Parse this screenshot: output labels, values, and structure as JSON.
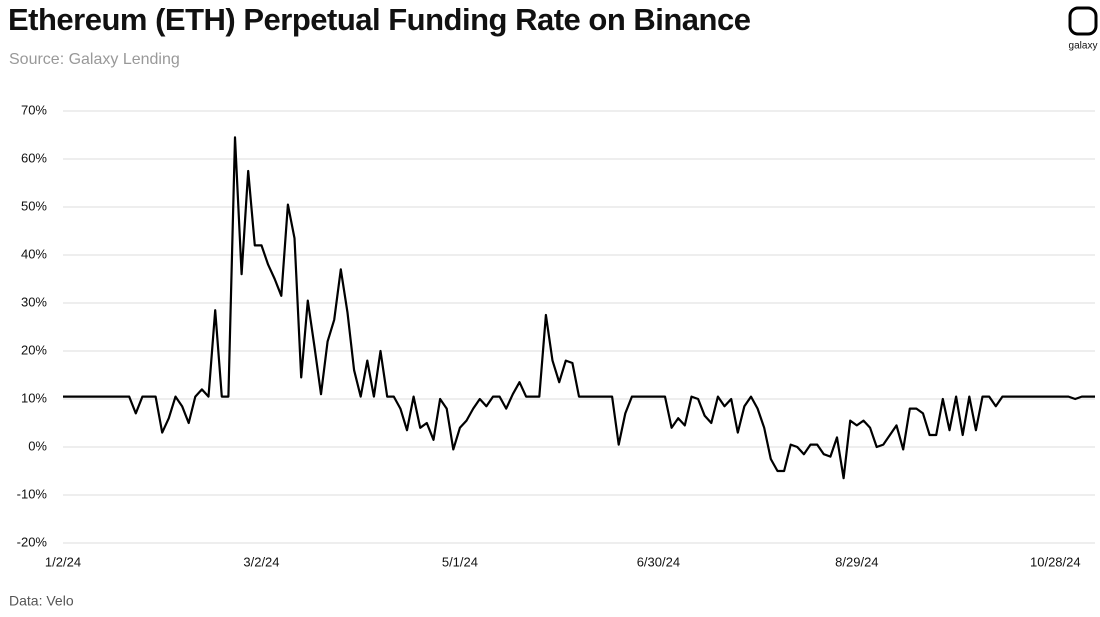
{
  "chart_data": {
    "type": "line",
    "title": "Ethereum (ETH) Perpetual Funding Rate on Binance",
    "subtitle": "Source: Galaxy Lending",
    "note": "Data: Velo",
    "logo_text": "galaxy",
    "color": "#000000",
    "grid": true,
    "x": [
      "1/2/24",
      "1/22/24",
      "1/24/24",
      "1/26/24",
      "1/30/24",
      "2/1/24",
      "2/3/24",
      "2/5/24",
      "2/7/24",
      "2/9/24",
      "2/11/24",
      "2/13/24",
      "2/15/24",
      "2/17/24",
      "2/19/24",
      "2/21/24",
      "2/23/24",
      "2/25/24",
      "2/27/24",
      "2/29/24",
      "3/2/24",
      "3/4/24",
      "3/6/24",
      "3/8/24",
      "3/10/24",
      "3/12/24",
      "3/14/24",
      "3/16/24",
      "3/18/24",
      "3/20/24",
      "3/22/24",
      "3/24/24",
      "3/26/24",
      "3/28/24",
      "3/30/24",
      "4/1/24",
      "4/3/24",
      "4/5/24",
      "4/7/24",
      "4/9/24",
      "4/11/24",
      "4/13/24",
      "4/15/24",
      "4/17/24",
      "4/19/24",
      "4/21/24",
      "4/23/24",
      "4/25/24",
      "4/27/24",
      "4/29/24",
      "5/1/24",
      "5/3/24",
      "5/5/24",
      "5/7/24",
      "5/9/24",
      "5/11/24",
      "5/13/24",
      "5/15/24",
      "5/17/24",
      "5/19/24",
      "5/21/24",
      "5/25/24",
      "5/27/24",
      "5/29/24",
      "5/31/24",
      "6/2/24",
      "6/4/24",
      "6/6/24",
      "6/16/24",
      "6/18/24",
      "6/20/24",
      "6/22/24",
      "7/2/24",
      "7/4/24",
      "7/6/24",
      "7/8/24",
      "7/10/24",
      "7/12/24",
      "7/14/24",
      "7/16/24",
      "7/18/24",
      "7/20/24",
      "7/22/24",
      "7/24/24",
      "7/26/24",
      "7/28/24",
      "7/30/24",
      "8/1/24",
      "8/3/24",
      "8/5/24",
      "8/7/24",
      "8/9/24",
      "8/11/24",
      "8/13/24",
      "8/15/24",
      "8/17/24",
      "8/19/24",
      "8/21/24",
      "8/23/24",
      "8/25/24",
      "8/27/24",
      "8/29/24",
      "8/31/24",
      "9/2/24",
      "9/4/24",
      "9/6/24",
      "9/8/24",
      "9/10/24",
      "9/12/24",
      "9/14/24",
      "9/16/24",
      "9/18/24",
      "9/20/24",
      "9/22/24",
      "9/24/24",
      "9/26/24",
      "9/28/24",
      "9/30/24",
      "10/2/24",
      "10/4/24",
      "10/6/24",
      "10/8/24",
      "10/10/24",
      "10/12/24",
      "11/1/24",
      "11/3/24",
      "11/5/24",
      "11/9/24"
    ],
    "values": [
      10.5,
      10.5,
      7,
      10.5,
      10.5,
      3,
      6,
      10.5,
      8.5,
      5,
      10.5,
      12,
      10.5,
      28.5,
      10.5,
      10.5,
      64.5,
      36,
      57.5,
      42,
      42,
      38,
      35,
      31.5,
      50.5,
      43.5,
      14.5,
      30.5,
      21,
      11,
      22,
      26.5,
      37,
      28,
      16,
      10.5,
      18,
      10.5,
      20,
      10.5,
      10.5,
      8,
      3.5,
      10.5,
      4,
      5,
      1.5,
      10,
      8,
      -0.5,
      4,
      5.5,
      8,
      10,
      8.5,
      10.5,
      10.5,
      8,
      11,
      13.5,
      10.5,
      10.5,
      27.5,
      18,
      13.5,
      18,
      17.5,
      10.5,
      10.5,
      0.5,
      7,
      10.5,
      10.5,
      4,
      6,
      4.5,
      10.5,
      10,
      6.5,
      5,
      10.5,
      8.5,
      10,
      3,
      8.5,
      10.5,
      8,
      4,
      -2.5,
      -5,
      -5,
      0.5,
      0,
      -1.5,
      0.5,
      0.5,
      -1.5,
      -2,
      2,
      -6.5,
      5.5,
      4.5,
      5.5,
      4,
      0,
      0.5,
      2.5,
      4.5,
      -0.5,
      8,
      8,
      7,
      2.5,
      2.5,
      10,
      3.5,
      10.5,
      2.5,
      10.5,
      3.5,
      10.5,
      10.5,
      8.5,
      10.5,
      10.5,
      10,
      10.5,
      10.5
    ],
    "xlim": [
      "1/2/24",
      "11/9/24"
    ],
    "xticks": [
      "1/2/24",
      "3/2/24",
      "5/1/24",
      "6/30/24",
      "8/29/24",
      "10/28/24"
    ],
    "ylim": [
      -20,
      70
    ],
    "yticks": [
      {
        "value": -20,
        "label": "-20%"
      },
      {
        "value": -10,
        "label": "-10%"
      },
      {
        "value": 0,
        "label": "0%"
      },
      {
        "value": 10,
        "label": "10%"
      },
      {
        "value": 20,
        "label": "20%"
      },
      {
        "value": 30,
        "label": "30%"
      },
      {
        "value": 40,
        "label": "40%"
      },
      {
        "value": 50,
        "label": "50%"
      },
      {
        "value": 60,
        "label": "60%"
      },
      {
        "value": 70,
        "label": "70%"
      }
    ]
  }
}
